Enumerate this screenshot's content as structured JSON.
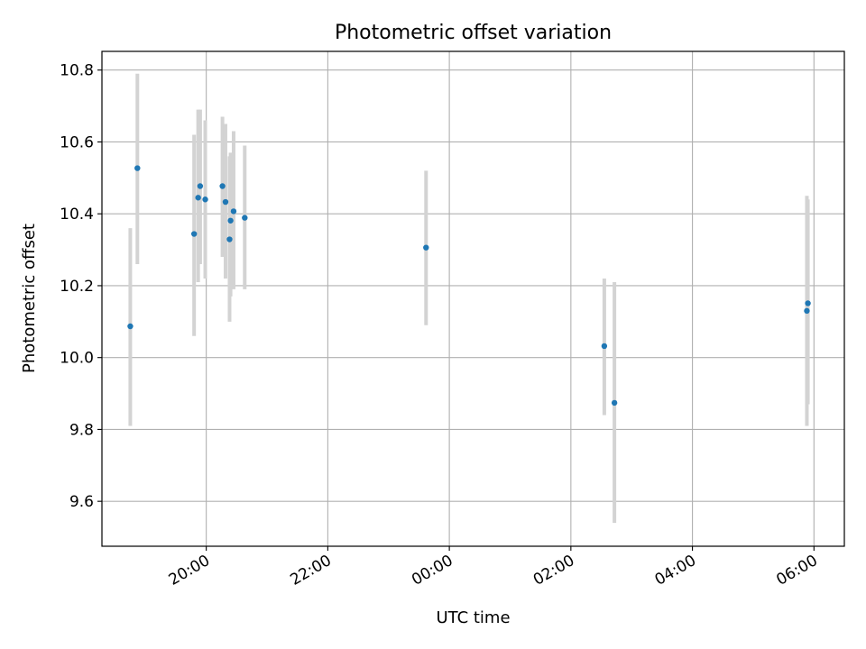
{
  "chart_data": {
    "type": "scatter",
    "title": "Photometric offset variation",
    "xlabel": "UTC time",
    "ylabel": "Photometric offset",
    "x_ticks": [
      "20:00",
      "22:00",
      "00:00",
      "02:00",
      "04:00",
      "06:00"
    ],
    "y_ticks": [
      "9.6",
      "9.8",
      "10.0",
      "10.2",
      "10.4",
      "10.6",
      "10.8"
    ],
    "xlim": [
      "18:17",
      "06:30"
    ],
    "ylim": [
      9.475,
      10.852
    ],
    "grid": true,
    "colors": {
      "marker": "#1f77b4",
      "errorbar": "#d3d3d3",
      "grid": "#b0b0b0"
    },
    "points": [
      {
        "x": "18:45",
        "y": 10.087,
        "yerr_low": 9.81,
        "yerr_high": 10.36
      },
      {
        "x": "18:52",
        "y": 10.527,
        "yerr_low": 10.26,
        "yerr_high": 10.79
      },
      {
        "x": "19:48",
        "y": 10.344,
        "yerr_low": 10.06,
        "yerr_high": 10.62
      },
      {
        "x": "19:52",
        "y": 10.445,
        "yerr_low": 10.21,
        "yerr_high": 10.69
      },
      {
        "x": "19:54",
        "y": 10.477,
        "yerr_low": 10.26,
        "yerr_high": 10.69
      },
      {
        "x": "19:59",
        "y": 10.44,
        "yerr_low": 10.22,
        "yerr_high": 10.66
      },
      {
        "x": "20:16",
        "y": 10.477,
        "yerr_low": 10.28,
        "yerr_high": 10.67
      },
      {
        "x": "20:19",
        "y": 10.433,
        "yerr_low": 10.22,
        "yerr_high": 10.65
      },
      {
        "x": "20:23",
        "y": 10.329,
        "yerr_low": 10.1,
        "yerr_high": 10.56
      },
      {
        "x": "20:24",
        "y": 10.381,
        "yerr_low": 10.17,
        "yerr_high": 10.57
      },
      {
        "x": "20:27",
        "y": 10.407,
        "yerr_low": 10.19,
        "yerr_high": 10.63
      },
      {
        "x": "20:38",
        "y": 10.389,
        "yerr_low": 10.19,
        "yerr_high": 10.59
      },
      {
        "x": "23:37",
        "y": 10.306,
        "yerr_low": 10.09,
        "yerr_high": 10.52
      },
      {
        "x": "02:33",
        "y": 10.032,
        "yerr_low": 9.84,
        "yerr_high": 10.22
      },
      {
        "x": "02:43",
        "y": 9.874,
        "yerr_low": 9.54,
        "yerr_high": 10.21
      },
      {
        "x": "05:53",
        "y": 10.13,
        "yerr_low": 9.81,
        "yerr_high": 10.45
      },
      {
        "x": "05:54",
        "y": 10.151,
        "yerr_low": 9.87,
        "yerr_high": 10.44
      }
    ]
  }
}
